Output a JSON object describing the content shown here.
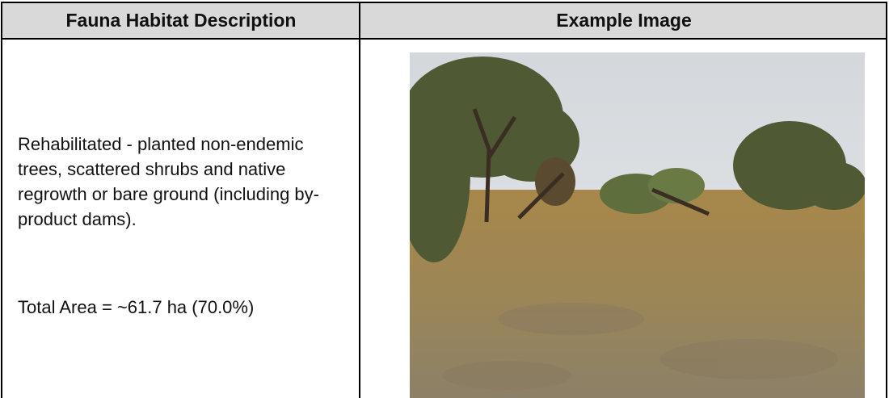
{
  "table": {
    "header": [
      "Fauna Habitat Description",
      "Example Image"
    ],
    "rows": [
      {
        "description": "Rehabilitated - planted non-endemic trees, scattered shrubs and native regrowth or bare ground (including by-product dams).",
        "area": "Total Area = ~61.7 ha (70.0%)"
      }
    ]
  }
}
